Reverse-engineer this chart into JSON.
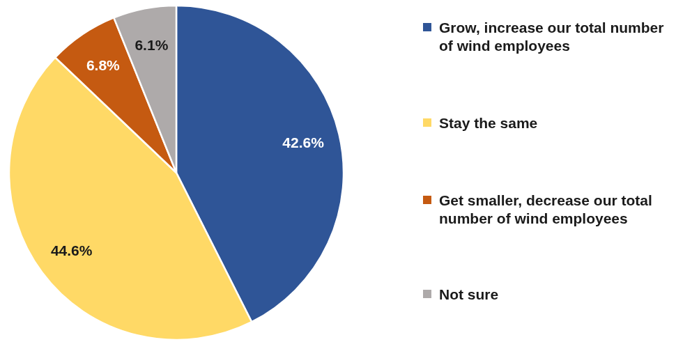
{
  "chart_data": {
    "type": "pie",
    "categories": [
      "Grow, increase our total number of wind employees",
      "Stay the same",
      "Get smaller, decrease our total number of wind employees",
      "Not sure"
    ],
    "values": [
      42.6,
      44.6,
      6.8,
      6.1
    ],
    "colors": [
      "#2f5597",
      "#ffd966",
      "#c55a11",
      "#aeaaaa"
    ],
    "value_labels": [
      "42.6%",
      "44.6%",
      "6.8%",
      "6.1%"
    ],
    "legend": "right"
  }
}
